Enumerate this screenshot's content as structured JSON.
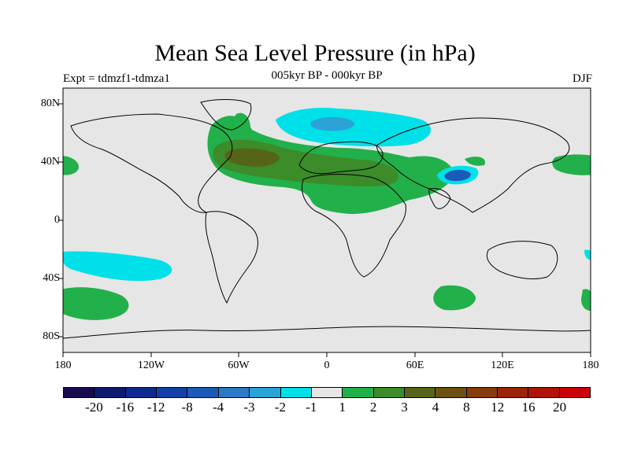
{
  "title": "Mean Sea Level Pressure (in hPa)",
  "subtitle": "005kyr BP - 000kyr BP",
  "experiment": "Expt = tdmzf1-tdmza1",
  "season": "DJF",
  "lat_ticks": [
    "80N",
    "40N",
    "0",
    "40S",
    "80S"
  ],
  "lon_ticks": [
    "180",
    "120W",
    "60W",
    "0",
    "60E",
    "120E",
    "180"
  ],
  "colorbar": {
    "colors": [
      "#1a0b4f",
      "#0d1a6e",
      "#0f2a8f",
      "#1240a6",
      "#1a5bb8",
      "#2a7ac8",
      "#2aa3d6",
      "#00e0e8",
      "#e6e6e6",
      "#22b04a",
      "#3c8c2a",
      "#566418",
      "#6e5010",
      "#873c0c",
      "#9c2408",
      "#b01408",
      "#c80008"
    ],
    "labels": [
      "-20",
      "-16",
      "-12",
      "-8",
      "-4",
      "-3",
      "-2",
      "-1",
      "1",
      "2",
      "3",
      "4",
      "8",
      "12",
      "16",
      "20"
    ]
  },
  "colors": {
    "background": "#e6e6e6",
    "cyan": "#00e0e8",
    "light_blue": "#2aa3d6",
    "blue": "#1a5bb8",
    "green": "#22b04a",
    "dark_green": "#3c8c2a",
    "olive": "#566418"
  }
}
